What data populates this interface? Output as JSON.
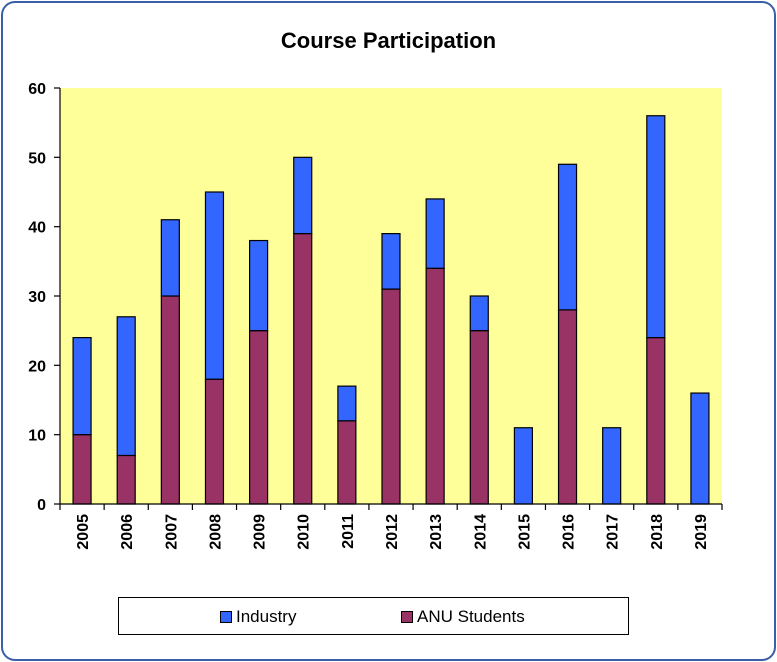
{
  "chart_data": {
    "type": "bar",
    "stacked": true,
    "title": "Course Participation",
    "categories": [
      "2005",
      "2006",
      "2007",
      "2008",
      "2009",
      "2010",
      "2011",
      "2012",
      "2013",
      "2014",
      "2015",
      "2016",
      "2017",
      "2018",
      "2019"
    ],
    "series": [
      {
        "name": "ANU Students",
        "color": "#993366",
        "values": [
          10,
          7,
          30,
          18,
          25,
          39,
          12,
          31,
          34,
          25,
          0,
          28,
          0,
          24,
          0
        ]
      },
      {
        "name": "Industry",
        "color": "#3366ff",
        "values": [
          14,
          20,
          11,
          27,
          13,
          11,
          5,
          8,
          10,
          5,
          11,
          21,
          11,
          32,
          16
        ]
      }
    ],
    "ylim": [
      0,
      60
    ],
    "yticks": [
      0,
      10,
      20,
      30,
      40,
      50,
      60
    ],
    "plot_background": "#ffff99",
    "grid": false,
    "legend_position": "bottom",
    "legend_order": [
      "Industry",
      "ANU Students"
    ]
  }
}
